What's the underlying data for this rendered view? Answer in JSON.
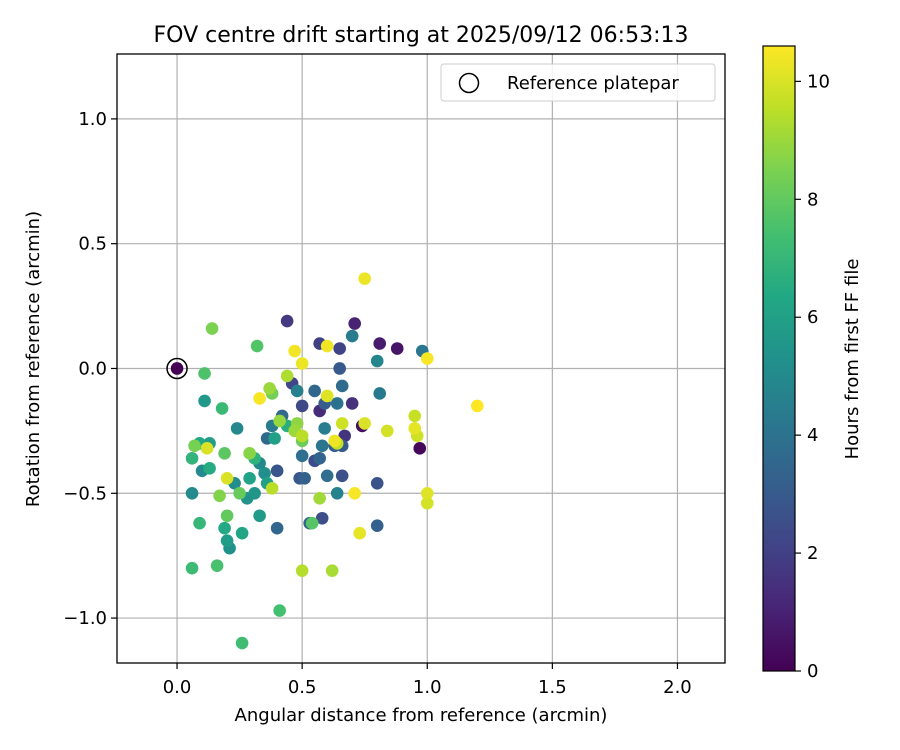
{
  "chart_data": {
    "type": "scatter",
    "title": "FOV centre drift starting at 2025/09/12 06:53:13",
    "xlabel": "Angular distance from reference (arcmin)",
    "ylabel": "Rotation from reference (arcmin)",
    "xlim": [
      -0.24,
      2.19
    ],
    "ylim": [
      -1.18,
      1.26
    ],
    "xticks": [
      0.0,
      0.5,
      1.0,
      1.5,
      2.0
    ],
    "xtick_labels": [
      "0.0",
      "0.5",
      "1.0",
      "1.5",
      "2.0"
    ],
    "yticks": [
      -1.0,
      -0.5,
      0.0,
      0.5,
      1.0
    ],
    "ytick_labels": [
      "−1.0",
      "−0.5",
      "0.0",
      "0.5",
      "1.0"
    ],
    "grid": true,
    "legend": {
      "position": "top-right",
      "entries": [
        "Reference platepar"
      ]
    },
    "reference_point": {
      "x": 0.0,
      "y": 0.0,
      "hours": 0
    },
    "colorbar": {
      "label": "Hours from first FF file",
      "colormap": "viridis",
      "range": [
        0,
        10.6
      ],
      "ticks": [
        0,
        2,
        4,
        6,
        8,
        10
      ],
      "tick_labels": [
        "0",
        "2",
        "4",
        "6",
        "8",
        "10"
      ]
    },
    "points": [
      {
        "x": 0.97,
        "y": -0.32,
        "hours": 0.2
      },
      {
        "x": 0.74,
        "y": -0.23,
        "hours": 0.4
      },
      {
        "x": 0.88,
        "y": 0.08,
        "hours": 0.6
      },
      {
        "x": 0.81,
        "y": 0.1,
        "hours": 0.8
      },
      {
        "x": 0.71,
        "y": 0.18,
        "hours": 1.0
      },
      {
        "x": 0.57,
        "y": -0.17,
        "hours": 1.3
      },
      {
        "x": 0.7,
        "y": -0.14,
        "hours": 1.5
      },
      {
        "x": 0.67,
        "y": -0.27,
        "hours": 1.6
      },
      {
        "x": 0.44,
        "y": 0.19,
        "hours": 1.8
      },
      {
        "x": 0.57,
        "y": 0.1,
        "hours": 2.0
      },
      {
        "x": 0.65,
        "y": 0.08,
        "hours": 2.1
      },
      {
        "x": 0.46,
        "y": -0.06,
        "hours": 2.2
      },
      {
        "x": 0.5,
        "y": -0.15,
        "hours": 2.3
      },
      {
        "x": 0.55,
        "y": -0.37,
        "hours": 2.4
      },
      {
        "x": 0.58,
        "y": -0.6,
        "hours": 2.5
      },
      {
        "x": 0.66,
        "y": -0.43,
        "hours": 2.6
      },
      {
        "x": 0.8,
        "y": -0.46,
        "hours": 2.7
      },
      {
        "x": 0.4,
        "y": -0.41,
        "hours": 2.8
      },
      {
        "x": 0.49,
        "y": -0.44,
        "hours": 2.9
      },
      {
        "x": 0.65,
        "y": 0.0,
        "hours": 3.0
      },
      {
        "x": 0.66,
        "y": -0.31,
        "hours": 3.0
      },
      {
        "x": 0.59,
        "y": -0.14,
        "hours": 3.1
      },
      {
        "x": 0.63,
        "y": -0.31,
        "hours": 3.2
      },
      {
        "x": 0.8,
        "y": -0.63,
        "hours": 3.3
      },
      {
        "x": 0.51,
        "y": -0.44,
        "hours": 3.3
      },
      {
        "x": 0.57,
        "y": -0.36,
        "hours": 3.4
      },
      {
        "x": 0.53,
        "y": -0.62,
        "hours": 3.4
      },
      {
        "x": 0.4,
        "y": -0.64,
        "hours": 3.5
      },
      {
        "x": 0.55,
        "y": -0.09,
        "hours": 3.5
      },
      {
        "x": 0.36,
        "y": -0.28,
        "hours": 3.6
      },
      {
        "x": 0.42,
        "y": -0.19,
        "hours": 3.6
      },
      {
        "x": 0.66,
        "y": -0.07,
        "hours": 3.7
      },
      {
        "x": 0.6,
        "y": -0.43,
        "hours": 3.8
      },
      {
        "x": 0.5,
        "y": -0.35,
        "hours": 3.9
      },
      {
        "x": 0.64,
        "y": -0.14,
        "hours": 4.0
      },
      {
        "x": 0.58,
        "y": -0.31,
        "hours": 4.1
      },
      {
        "x": 0.98,
        "y": 0.07,
        "hours": 4.2
      },
      {
        "x": 0.81,
        "y": -0.1,
        "hours": 4.3
      },
      {
        "x": 0.7,
        "y": 0.13,
        "hours": 4.4
      },
      {
        "x": 0.38,
        "y": -0.23,
        "hours": 4.4
      },
      {
        "x": 0.59,
        "y": -0.24,
        "hours": 4.5
      },
      {
        "x": 0.48,
        "y": -0.09,
        "hours": 4.6
      },
      {
        "x": 0.64,
        "y": -0.5,
        "hours": 4.7
      },
      {
        "x": 0.8,
        "y": 0.03,
        "hours": 4.8
      },
      {
        "x": 0.33,
        "y": -0.38,
        "hours": 4.9
      },
      {
        "x": 0.24,
        "y": -0.24,
        "hours": 4.9
      },
      {
        "x": 0.1,
        "y": -0.41,
        "hours": 5.0
      },
      {
        "x": 0.06,
        "y": -0.5,
        "hours": 5.0
      },
      {
        "x": 0.23,
        "y": -0.46,
        "hours": 5.1
      },
      {
        "x": 0.35,
        "y": -0.42,
        "hours": 5.2
      },
      {
        "x": 0.21,
        "y": -0.72,
        "hours": 5.3
      },
      {
        "x": 0.28,
        "y": -0.52,
        "hours": 5.4
      },
      {
        "x": 0.31,
        "y": -0.5,
        "hours": 5.5
      },
      {
        "x": 0.11,
        "y": -0.13,
        "hours": 5.6
      },
      {
        "x": 0.33,
        "y": -0.59,
        "hours": 5.7
      },
      {
        "x": 0.2,
        "y": -0.69,
        "hours": 5.8
      },
      {
        "x": 0.13,
        "y": -0.3,
        "hours": 5.9
      },
      {
        "x": 0.36,
        "y": -0.46,
        "hours": 6.0
      },
      {
        "x": 0.39,
        "y": -0.28,
        "hours": 6.0
      },
      {
        "x": 0.29,
        "y": -0.44,
        "hours": 6.1
      },
      {
        "x": 0.26,
        "y": -0.66,
        "hours": 6.2
      },
      {
        "x": 0.09,
        "y": -0.3,
        "hours": 6.3
      },
      {
        "x": 0.19,
        "y": -0.64,
        "hours": 6.4
      },
      {
        "x": 0.13,
        "y": -0.4,
        "hours": 6.5
      },
      {
        "x": 0.44,
        "y": -0.23,
        "hours": 6.6
      },
      {
        "x": 0.31,
        "y": -0.36,
        "hours": 6.8
      },
      {
        "x": 0.06,
        "y": -0.36,
        "hours": 6.9
      },
      {
        "x": 0.09,
        "y": -0.62,
        "hours": 7.0
      },
      {
        "x": 0.18,
        "y": -0.16,
        "hours": 7.1
      },
      {
        "x": 0.06,
        "y": -0.8,
        "hours": 7.2
      },
      {
        "x": 0.26,
        "y": -1.1,
        "hours": 7.3
      },
      {
        "x": 0.41,
        "y": -0.97,
        "hours": 7.4
      },
      {
        "x": 0.16,
        "y": -0.79,
        "hours": 7.5
      },
      {
        "x": 0.11,
        "y": -0.02,
        "hours": 7.6
      },
      {
        "x": 0.32,
        "y": 0.09,
        "hours": 7.7
      },
      {
        "x": 0.54,
        "y": -0.62,
        "hours": 7.8
      },
      {
        "x": 0.19,
        "y": -0.34,
        "hours": 7.9
      },
      {
        "x": 0.2,
        "y": -0.59,
        "hours": 8.0
      },
      {
        "x": 0.25,
        "y": -0.5,
        "hours": 8.1
      },
      {
        "x": 0.5,
        "y": -0.29,
        "hours": 8.2
      },
      {
        "x": 0.38,
        "y": -0.1,
        "hours": 8.3
      },
      {
        "x": 0.07,
        "y": -0.31,
        "hours": 8.4
      },
      {
        "x": 0.14,
        "y": 0.16,
        "hours": 8.5
      },
      {
        "x": 0.17,
        "y": -0.51,
        "hours": 8.6
      },
      {
        "x": 0.29,
        "y": -0.34,
        "hours": 8.7
      },
      {
        "x": 0.48,
        "y": -0.22,
        "hours": 8.8
      },
      {
        "x": 0.41,
        "y": -0.21,
        "hours": 8.9
      },
      {
        "x": 0.37,
        "y": -0.08,
        "hours": 9.0
      },
      {
        "x": 0.47,
        "y": -0.25,
        "hours": 9.0
      },
      {
        "x": 0.57,
        "y": -0.52,
        "hours": 9.1
      },
      {
        "x": 0.62,
        "y": -0.81,
        "hours": 9.2
      },
      {
        "x": 0.44,
        "y": -0.03,
        "hours": 9.3
      },
      {
        "x": 0.5,
        "y": -0.81,
        "hours": 9.4
      },
      {
        "x": 0.5,
        "y": -0.27,
        "hours": 9.5
      },
      {
        "x": 0.38,
        "y": -0.48,
        "hours": 9.5
      },
      {
        "x": 0.64,
        "y": -0.3,
        "hours": 9.6
      },
      {
        "x": 0.95,
        "y": -0.19,
        "hours": 9.7
      },
      {
        "x": 0.66,
        "y": -0.22,
        "hours": 9.8
      },
      {
        "x": 0.96,
        "y": -0.27,
        "hours": 9.8
      },
      {
        "x": 0.84,
        "y": -0.25,
        "hours": 9.9
      },
      {
        "x": 1.0,
        "y": -0.54,
        "hours": 9.9
      },
      {
        "x": 0.75,
        "y": -0.22,
        "hours": 10.0
      },
      {
        "x": 0.2,
        "y": -0.44,
        "hours": 10.0
      },
      {
        "x": 0.12,
        "y": -0.32,
        "hours": 10.0
      },
      {
        "x": 1.0,
        "y": -0.5,
        "hours": 10.1
      },
      {
        "x": 0.6,
        "y": -0.11,
        "hours": 10.1
      },
      {
        "x": 0.95,
        "y": -0.24,
        "hours": 10.2
      },
      {
        "x": 0.73,
        "y": -0.66,
        "hours": 10.2
      },
      {
        "x": 0.63,
        "y": -0.29,
        "hours": 10.3
      },
      {
        "x": 0.75,
        "y": 0.36,
        "hours": 10.3
      },
      {
        "x": 0.5,
        "y": 0.02,
        "hours": 10.3
      },
      {
        "x": 0.6,
        "y": 0.09,
        "hours": 10.4
      },
      {
        "x": 0.47,
        "y": 0.07,
        "hours": 10.4
      },
      {
        "x": 1.0,
        "y": 0.04,
        "hours": 10.5
      },
      {
        "x": 0.71,
        "y": -0.5,
        "hours": 10.5
      },
      {
        "x": 0.33,
        "y": -0.12,
        "hours": 10.5
      },
      {
        "x": 1.2,
        "y": -0.15,
        "hours": 10.6
      }
    ]
  }
}
